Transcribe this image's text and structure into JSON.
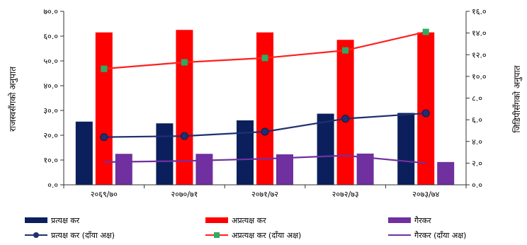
{
  "chart_data": {
    "type": "bar",
    "categories": [
      "२०६९/७०",
      "२०७०/७१",
      "२०७१/७२",
      "२०७२/७३",
      "२०७३/७४"
    ],
    "ylabel_left": "राजस्वसँगको अनुपात",
    "ylabel_right": "जिडिपीसँगको अनुपात",
    "ylim_left": [
      0,
      70
    ],
    "ylim_right": [
      0,
      16
    ],
    "yticks_left": [
      "०.०",
      "१०.०",
      "२०.०",
      "३०.०",
      "४०.०",
      "५०.०",
      "६०.०",
      "७०.०"
    ],
    "yticks_right": [
      "०.०",
      "२.०",
      "४.०",
      "६.०",
      "८.०",
      "१०.०",
      "१२.०",
      "१४.०",
      "१६.०"
    ],
    "bar_series": [
      {
        "name": "प्रत्यक्ष कर",
        "color": "#0b1f5c",
        "values": [
          25.5,
          24.8,
          26.0,
          28.7,
          29.0
        ]
      },
      {
        "name": "अप्रत्यक्ष कर",
        "color": "#ff0000",
        "values": [
          61.5,
          62.5,
          61.5,
          58.5,
          61.5
        ]
      },
      {
        "name": "गैरकर",
        "color": "#7030a0",
        "values": [
          12.5,
          12.5,
          12.3,
          12.6,
          9.2
        ]
      }
    ],
    "line_series": [
      {
        "name": "प्रत्यक्ष कर (दाँया अक्ष)",
        "color": "#1f3070",
        "marker_color": "#1f3070",
        "marker": "circle",
        "values": [
          4.4,
          4.5,
          4.9,
          6.1,
          6.6
        ]
      },
      {
        "name": "अप्रत्यक्ष कर (दाँया अक्ष)",
        "color": "#ff2020",
        "marker_color": "#2eab62",
        "marker": "square",
        "values": [
          10.7,
          11.3,
          11.7,
          12.4,
          14.1
        ]
      },
      {
        "name": "गैरकर (दाँया अक्ष)",
        "color": "#7030a0",
        "values": [
          2.1,
          2.2,
          2.4,
          2.7,
          2.0
        ]
      }
    ],
    "grid": false,
    "legend_position": "bottom"
  }
}
